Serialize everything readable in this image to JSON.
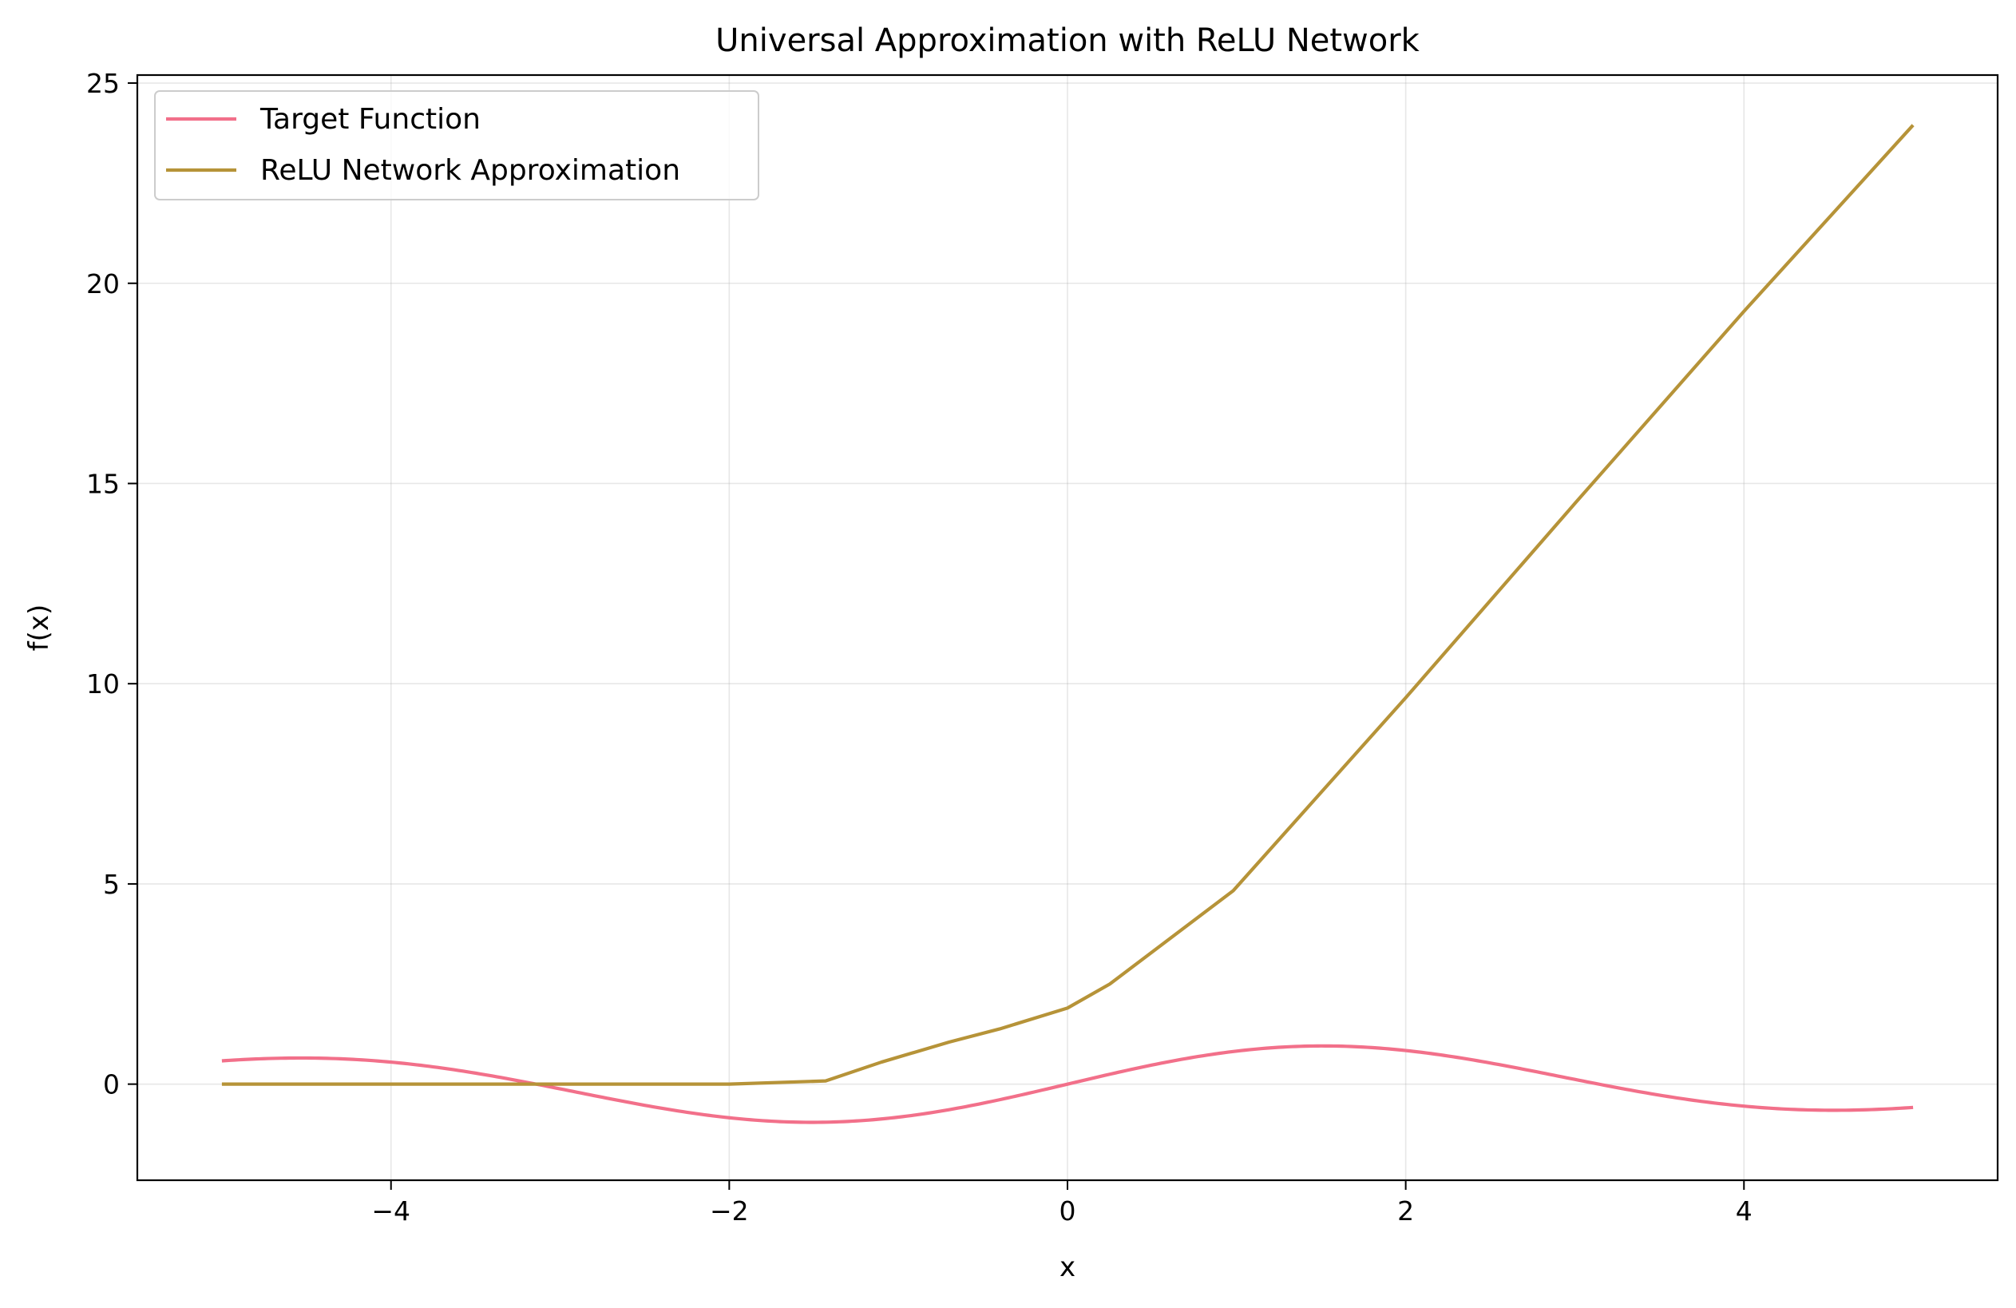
{
  "chart_data": {
    "type": "line",
    "title": "Universal Approximation with ReLU Network",
    "xlabel": "x",
    "ylabel": "f(x)",
    "xlim": [
      -5.5,
      5.5
    ],
    "ylim": [
      -2.4,
      25.2
    ],
    "xticks": [
      -4,
      -2,
      0,
      2,
      4
    ],
    "xtick_labels": [
      "−4",
      "−2",
      "0",
      "2",
      "4"
    ],
    "yticks": [
      0,
      5,
      10,
      15,
      20,
      25
    ],
    "ytick_labels": [
      "0",
      "5",
      "10",
      "15",
      "20",
      "25"
    ],
    "grid": true,
    "legend_position": "top-left",
    "series": [
      {
        "name": "Target Function",
        "color": "#f2708a",
        "function": "sin(x)*exp(-x^2/50)",
        "x_range": [
          -5,
          5
        ]
      },
      {
        "name": "ReLU Network Approximation",
        "color": "#b69338",
        "x": [
          -5,
          -2.0,
          -1.43,
          -1.1,
          -0.7,
          -0.4,
          0.0,
          0.25,
          0.98,
          2.0,
          3.0,
          4.0,
          5.0
        ],
        "y": [
          0,
          0,
          0.08,
          0.55,
          1.05,
          1.38,
          1.9,
          2.5,
          4.83,
          9.65,
          14.5,
          19.3,
          23.95
        ]
      }
    ]
  }
}
